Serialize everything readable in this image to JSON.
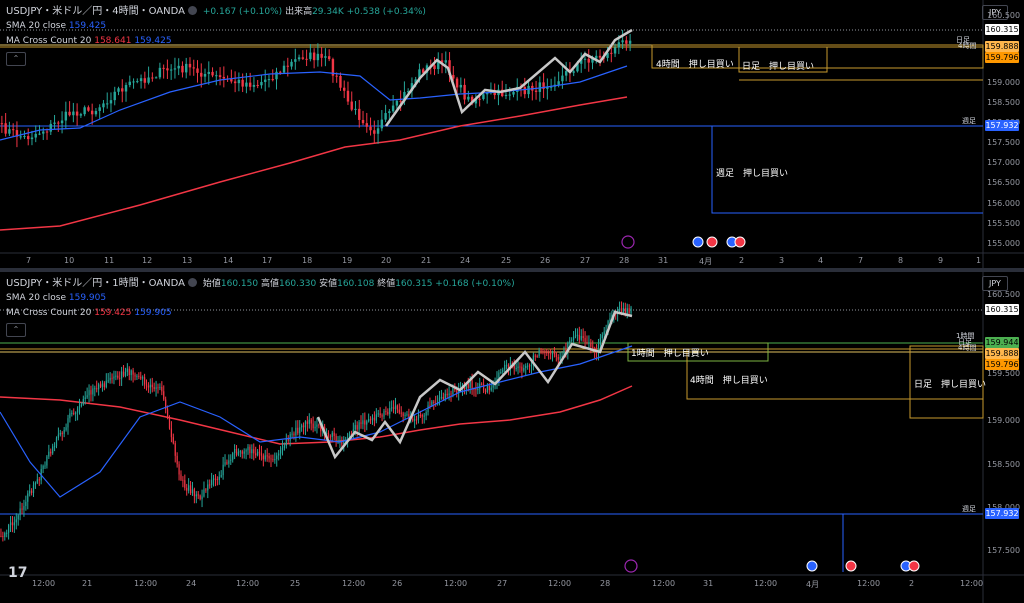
{
  "top": {
    "symbol": "USDJPY・米ドル／円・4時間・OANDA",
    "change": "+0.167 (+0.10%)",
    "vol_label": "出来高",
    "vol_value": "29.34K",
    "vol_change": "+0.538 (+0.34%)",
    "sma_label": "SMA 20 close",
    "sma_value": "159.425",
    "mac_label": "MA Cross Count 20",
    "mac_v1": "158.641",
    "mac_v2": "159.425",
    "currency": "JPY",
    "collapse": "⌃",
    "price_labels": [
      "160.500",
      "159.000",
      "158.500",
      "158.000",
      "157.500",
      "157.000",
      "156.500",
      "156.000",
      "155.500",
      "155.000"
    ],
    "tags": [
      {
        "label": "160.315",
        "bg": "#ffffff",
        "fg": "#000000"
      },
      {
        "label": "159.888",
        "bg": "#ffb74d",
        "fg": "#000000"
      },
      {
        "label": "159.796",
        "bg": "#ff9800",
        "fg": "#000000"
      },
      {
        "label": "157.932",
        "bg": "#2962ff",
        "fg": "#ffffff"
      }
    ],
    "level_labels": [
      "日足",
      "4時間",
      "週足"
    ],
    "zones": [
      "4時間　押し目買い",
      "日足　押し目買い",
      "週足　押し目買い"
    ],
    "x_labels": [
      "7",
      "10",
      "11",
      "12",
      "13",
      "14",
      "17",
      "18",
      "19",
      "20",
      "21",
      "24",
      "25",
      "26",
      "27",
      "28",
      "31",
      "4月",
      "2",
      "3",
      "4",
      "7",
      "8",
      "9",
      "1"
    ]
  },
  "bottom": {
    "symbol": "USDJPY・米ドル／円・1時間・OANDA",
    "o_label": "始値",
    "o_value": "160.150",
    "h_label": "高値",
    "h_value": "160.330",
    "l_label": "安値",
    "l_value": "160.108",
    "c_label": "終値",
    "c_value": "160.315",
    "change": "+0.168 (+0.10%)",
    "sma_label": "SMA 20 close",
    "sma_value": "159.905",
    "mac_label": "MA Cross Count 20",
    "mac_v1": "159.425",
    "mac_v2": "159.905",
    "currency": "JPY",
    "collapse": "⌃",
    "price_labels": [
      "160.500",
      "159.500",
      "159.000",
      "158.500",
      "158.000",
      "157.500"
    ],
    "tags": [
      {
        "label": "160.315",
        "bg": "#ffffff",
        "fg": "#000000"
      },
      {
        "label": "159.944",
        "bg": "#4caf50",
        "fg": "#000000"
      },
      {
        "label": "159.888",
        "bg": "#ffb74d",
        "fg": "#000000"
      },
      {
        "label": "159.796",
        "bg": "#ff9800",
        "fg": "#000000"
      },
      {
        "label": "157.932",
        "bg": "#2962ff",
        "fg": "#ffffff"
      }
    ],
    "level_labels": [
      "1時間",
      "日足",
      "4時間",
      "週足"
    ],
    "zones": [
      "1時間　押し目買い",
      "4時間　押し目買い",
      "日足　押し目買い"
    ],
    "x_labels": [
      "12:00",
      "21",
      "12:00",
      "24",
      "12:00",
      "25",
      "12:00",
      "26",
      "12:00",
      "27",
      "12:00",
      "28",
      "12:00",
      "31",
      "12:00",
      "4月",
      "12:00",
      "2",
      "12:00"
    ],
    "logo": "17"
  },
  "colors": {
    "up": "#26a69a",
    "down": "#f23645",
    "sma": "#2962ff",
    "ma": "#f23645",
    "zone": "#c79a2e",
    "weekly": "#2962ff",
    "zigzag": "#c8c8c8"
  }
}
